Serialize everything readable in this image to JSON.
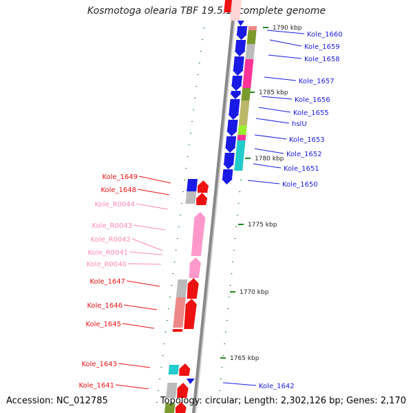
{
  "title": "Kosmotoga olearia TBF 19.5.1, complete genome",
  "accession": "Accession: NC_012785",
  "summary": "Topology: circular; Length: 2,302,126 bp; Genes: 2,170",
  "colors": {
    "forward": "#1a1ae6",
    "reverse": "#ee1111",
    "rna": "#ff99cc",
    "rna_label": "#ff88bb",
    "tick": "#1a8a1a",
    "backbone": "#888888",
    "cog_olive": "#7a9a2e",
    "cog_gray": "#bbbbbb",
    "cog_pink": "#ff3399",
    "cog_khaki": "#bdb76b",
    "cog_cyan": "#22cccc",
    "cog_salmon": "#ee8888",
    "cog_lime": "#99ee33"
  },
  "scale_labels": [
    "1790 kbp",
    "1785 kbp",
    "1780 kbp",
    "1775 kbp",
    "1770 kbp",
    "1765 kbp"
  ],
  "forward_genes": [
    "Kole_1660",
    "Kole_1659",
    "Kole_1658",
    "Kole_1657",
    "Kole_1656",
    "Kole_1655",
    "hslU",
    "Kole_1653",
    "Kole_1652",
    "Kole_1651",
    "Kole_1650",
    "Kole_1642"
  ],
  "reverse_genes": [
    "Kole_1649",
    "Kole_1648",
    "Kole_1647",
    "Kole_1646",
    "Kole_1645",
    "Kole_1643",
    "Kole_1641"
  ],
  "rna_genes": [
    "Kole_R0044",
    "Kole_R0043",
    "Kole_R0042",
    "Kole_R0041",
    "Kole_R0040"
  ]
}
